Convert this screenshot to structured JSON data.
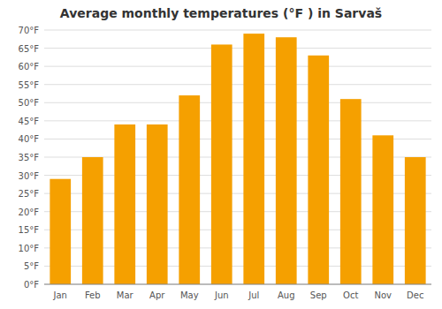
{
  "chart_data": {
    "type": "bar",
    "title": "Average monthly temperatures (°F ) in Sarvaš",
    "categories": [
      "Jan",
      "Feb",
      "Mar",
      "Apr",
      "May",
      "Jun",
      "Jul",
      "Aug",
      "Sep",
      "Oct",
      "Nov",
      "Dec"
    ],
    "values": [
      29,
      35,
      44,
      44,
      52,
      66,
      69,
      68,
      63,
      51,
      41,
      35
    ],
    "color": "#F5A000",
    "ylim": [
      0,
      70
    ],
    "yticks": [
      {
        "value": 0,
        "label": "0°F"
      },
      {
        "value": 5,
        "label": "5°F"
      },
      {
        "value": 10,
        "label": "10°F"
      },
      {
        "value": 15,
        "label": "15°F"
      },
      {
        "value": 20,
        "label": "20°F"
      },
      {
        "value": 25,
        "label": "25°F"
      },
      {
        "value": 30,
        "label": "30°F"
      },
      {
        "value": 35,
        "label": "35°F"
      },
      {
        "value": 40,
        "label": "40°F"
      },
      {
        "value": 45,
        "label": "45°F"
      },
      {
        "value": 50,
        "label": "50°F"
      },
      {
        "value": 55,
        "label": "55°F"
      },
      {
        "value": 60,
        "label": "60°F"
      },
      {
        "value": 65,
        "label": "65°F"
      },
      {
        "value": 70,
        "label": "70°F"
      }
    ],
    "grid": true
  }
}
